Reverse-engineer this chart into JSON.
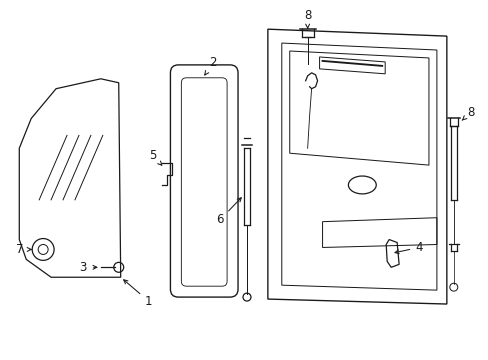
{
  "bg_color": "#ffffff",
  "line_color": "#1a1a1a",
  "figsize": [
    4.89,
    3.6
  ],
  "dpi": 100,
  "lw": 0.9
}
